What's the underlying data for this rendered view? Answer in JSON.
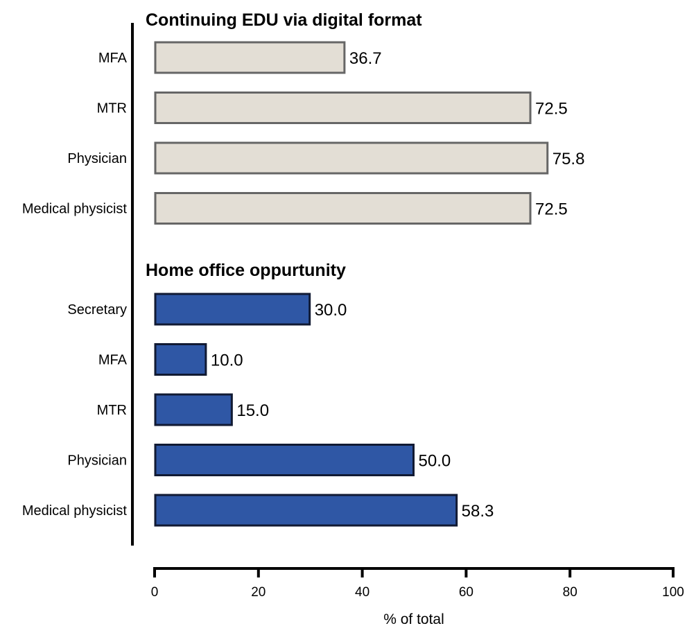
{
  "chart_data": {
    "type": "bar",
    "orientation": "horizontal",
    "xlabel": "% of total",
    "xlim": [
      0,
      100
    ],
    "xticks": [
      0,
      20,
      40,
      60,
      80,
      100
    ],
    "grid": false,
    "groups": [
      {
        "title": "Continuing EDU via digital format",
        "color": "#e3ded5",
        "stroke": "#666666",
        "bars": [
          {
            "category": "MFA",
            "value": 36.7,
            "label": "36.7"
          },
          {
            "category": "MTR",
            "value": 72.5,
            "label": "72.5"
          },
          {
            "category": "Physician",
            "value": 75.8,
            "label": "75.8"
          },
          {
            "category": "Medical physicist",
            "value": 72.5,
            "label": "72.5"
          }
        ]
      },
      {
        "title": "Home office oppurtunity",
        "color": "#2f57a5",
        "stroke": "#111a33",
        "bars": [
          {
            "category": "Secretary",
            "value": 30.0,
            "label": "30.0"
          },
          {
            "category": "MFA",
            "value": 10.0,
            "label": "10.0"
          },
          {
            "category": "MTR",
            "value": 15.0,
            "label": "15.0"
          },
          {
            "category": "Physician",
            "value": 50.0,
            "label": "50.0"
          },
          {
            "category": "Medical physicist",
            "value": 58.3,
            "label": "58.3"
          }
        ]
      }
    ]
  }
}
